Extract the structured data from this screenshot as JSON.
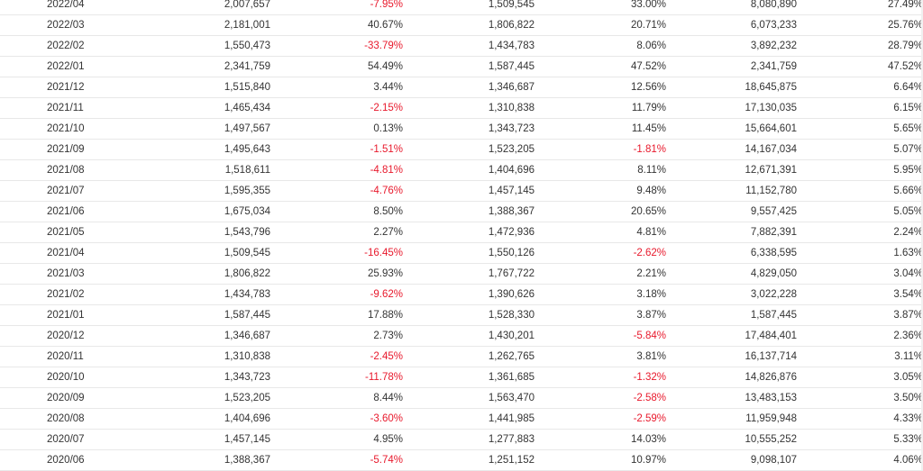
{
  "table": {
    "rows": [
      {
        "period": "2022/04",
        "v1": "2,007,657",
        "p1": "-7.95%",
        "v2": "1,509,545",
        "p2": "33.00%",
        "v3": "8,080,890",
        "p3": "27.49%"
      },
      {
        "period": "2022/03",
        "v1": "2,181,001",
        "p1": "40.67%",
        "v2": "1,806,822",
        "p2": "20.71%",
        "v3": "6,073,233",
        "p3": "25.76%"
      },
      {
        "period": "2022/02",
        "v1": "1,550,473",
        "p1": "-33.79%",
        "v2": "1,434,783",
        "p2": "8.06%",
        "v3": "3,892,232",
        "p3": "28.79%"
      },
      {
        "period": "2022/01",
        "v1": "2,341,759",
        "p1": "54.49%",
        "v2": "1,587,445",
        "p2": "47.52%",
        "v3": "2,341,759",
        "p3": "47.52%"
      },
      {
        "period": "2021/12",
        "v1": "1,515,840",
        "p1": "3.44%",
        "v2": "1,346,687",
        "p2": "12.56%",
        "v3": "18,645,875",
        "p3": "6.64%"
      },
      {
        "period": "2021/11",
        "v1": "1,465,434",
        "p1": "-2.15%",
        "v2": "1,310,838",
        "p2": "11.79%",
        "v3": "17,130,035",
        "p3": "6.15%"
      },
      {
        "period": "2021/10",
        "v1": "1,497,567",
        "p1": "0.13%",
        "v2": "1,343,723",
        "p2": "11.45%",
        "v3": "15,664,601",
        "p3": "5.65%"
      },
      {
        "period": "2021/09",
        "v1": "1,495,643",
        "p1": "-1.51%",
        "v2": "1,523,205",
        "p2": "-1.81%",
        "v3": "14,167,034",
        "p3": "5.07%"
      },
      {
        "period": "2021/08",
        "v1": "1,518,611",
        "p1": "-4.81%",
        "v2": "1,404,696",
        "p2": "8.11%",
        "v3": "12,671,391",
        "p3": "5.95%"
      },
      {
        "period": "2021/07",
        "v1": "1,595,355",
        "p1": "-4.76%",
        "v2": "1,457,145",
        "p2": "9.48%",
        "v3": "11,152,780",
        "p3": "5.66%"
      },
      {
        "period": "2021/06",
        "v1": "1,675,034",
        "p1": "8.50%",
        "v2": "1,388,367",
        "p2": "20.65%",
        "v3": "9,557,425",
        "p3": "5.05%"
      },
      {
        "period": "2021/05",
        "v1": "1,543,796",
        "p1": "2.27%",
        "v2": "1,472,936",
        "p2": "4.81%",
        "v3": "7,882,391",
        "p3": "2.24%"
      },
      {
        "period": "2021/04",
        "v1": "1,509,545",
        "p1": "-16.45%",
        "v2": "1,550,126",
        "p2": "-2.62%",
        "v3": "6,338,595",
        "p3": "1.63%"
      },
      {
        "period": "2021/03",
        "v1": "1,806,822",
        "p1": "25.93%",
        "v2": "1,767,722",
        "p2": "2.21%",
        "v3": "4,829,050",
        "p3": "3.04%"
      },
      {
        "period": "2021/02",
        "v1": "1,434,783",
        "p1": "-9.62%",
        "v2": "1,390,626",
        "p2": "3.18%",
        "v3": "3,022,228",
        "p3": "3.54%"
      },
      {
        "period": "2021/01",
        "v1": "1,587,445",
        "p1": "17.88%",
        "v2": "1,528,330",
        "p2": "3.87%",
        "v3": "1,587,445",
        "p3": "3.87%"
      },
      {
        "period": "2020/12",
        "v1": "1,346,687",
        "p1": "2.73%",
        "v2": "1,430,201",
        "p2": "-5.84%",
        "v3": "17,484,401",
        "p3": "2.36%"
      },
      {
        "period": "2020/11",
        "v1": "1,310,838",
        "p1": "-2.45%",
        "v2": "1,262,765",
        "p2": "3.81%",
        "v3": "16,137,714",
        "p3": "3.11%"
      },
      {
        "period": "2020/10",
        "v1": "1,343,723",
        "p1": "-11.78%",
        "v2": "1,361,685",
        "p2": "-1.32%",
        "v3": "14,826,876",
        "p3": "3.05%"
      },
      {
        "period": "2020/09",
        "v1": "1,523,205",
        "p1": "8.44%",
        "v2": "1,563,470",
        "p2": "-2.58%",
        "v3": "13,483,153",
        "p3": "3.50%"
      },
      {
        "period": "2020/08",
        "v1": "1,404,696",
        "p1": "-3.60%",
        "v2": "1,441,985",
        "p2": "-2.59%",
        "v3": "11,959,948",
        "p3": "4.33%"
      },
      {
        "period": "2020/07",
        "v1": "1,457,145",
        "p1": "4.95%",
        "v2": "1,277,883",
        "p2": "14.03%",
        "v3": "10,555,252",
        "p3": "5.33%"
      },
      {
        "period": "2020/06",
        "v1": "1,388,367",
        "p1": "-5.74%",
        "v2": "1,251,152",
        "p2": "10.97%",
        "v3": "9,098,107",
        "p3": "4.06%"
      }
    ]
  },
  "colors": {
    "negative": "#e8192c",
    "text": "#333333",
    "row_border": "#e8e8e8"
  }
}
